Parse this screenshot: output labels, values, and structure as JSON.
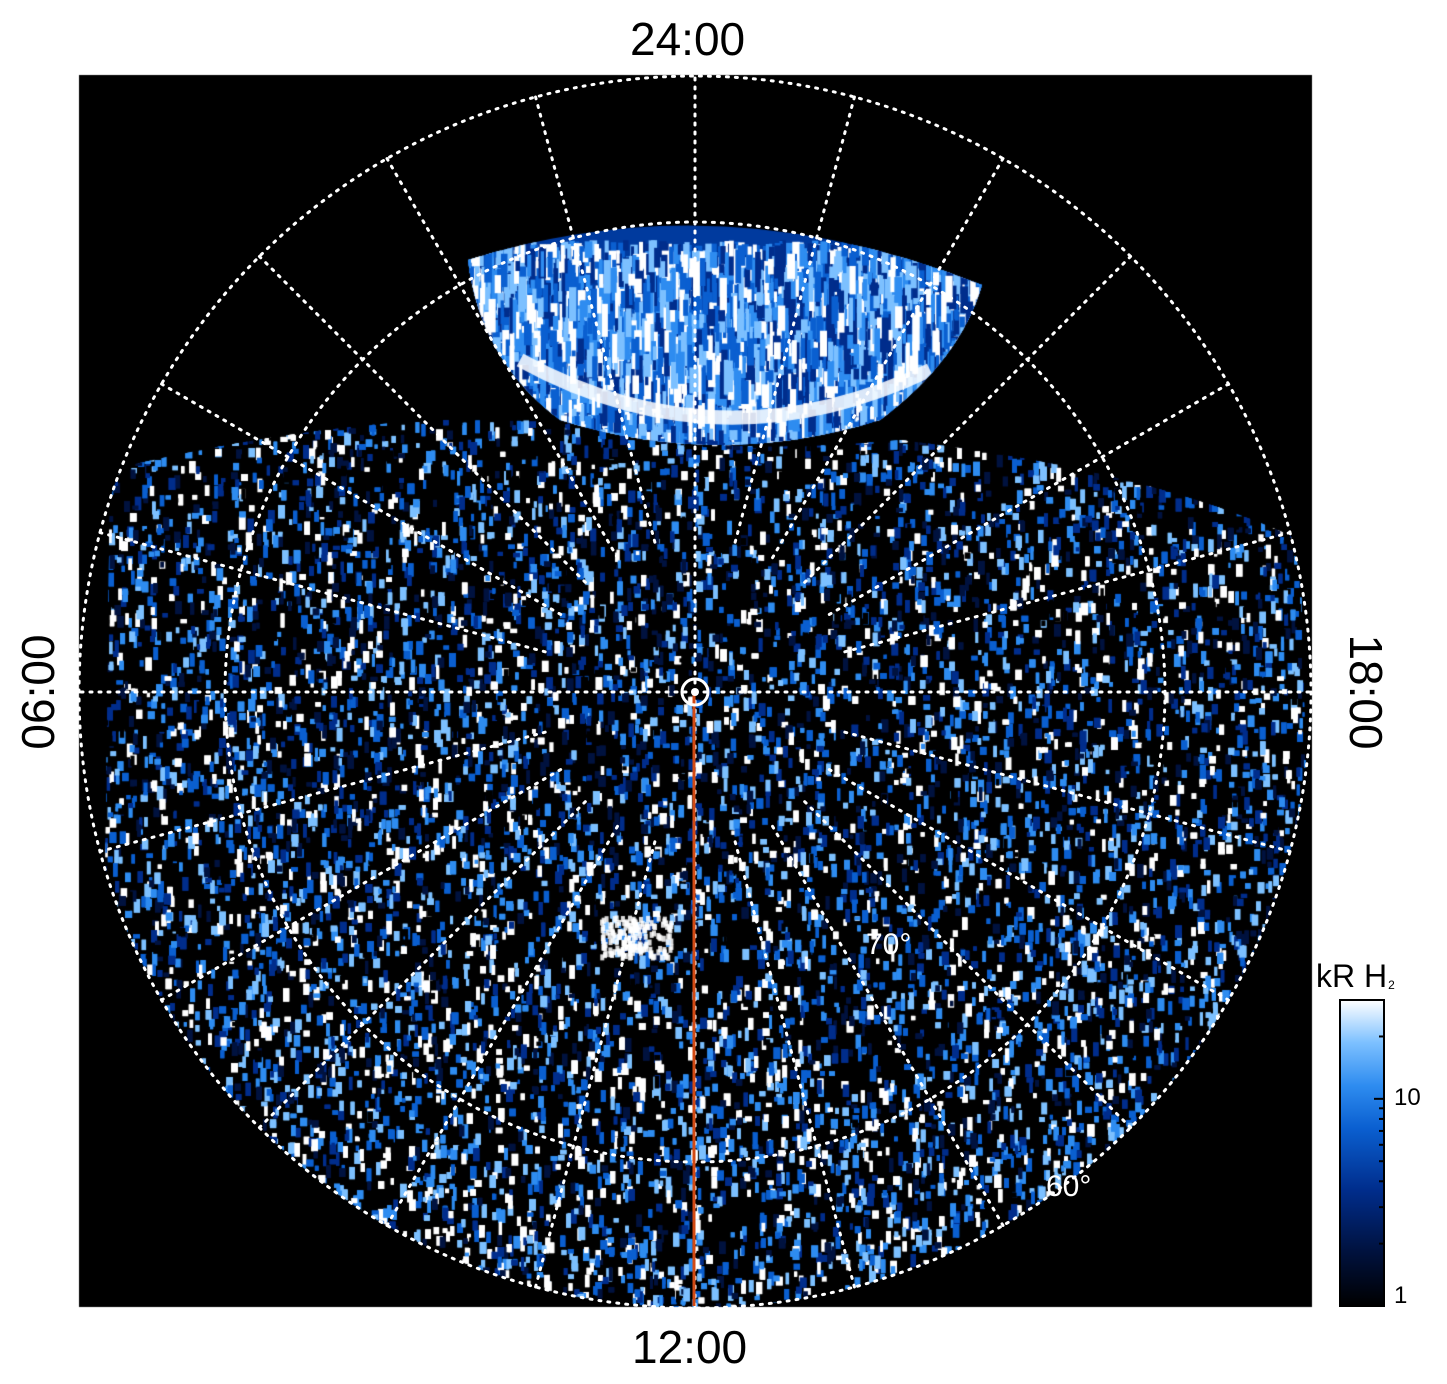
{
  "figure": {
    "local_time_labels": {
      "top": "24:00",
      "bottom": "12:00",
      "left": "06:00",
      "right": "18:00"
    },
    "latitude_labels": {
      "inner": "70°",
      "outer": "60°"
    },
    "colorbar": {
      "title_main": "kR H",
      "title_sub": "2",
      "scale": "log",
      "range": [
        1,
        30
      ],
      "tick_labels": {
        "ten": "10",
        "one": "1"
      }
    },
    "colors": {
      "background": "#000000",
      "grid": "#ffffff",
      "meridian_line": "#d24a14",
      "colormap": [
        "#000000",
        "#00123f",
        "#002d8c",
        "#0a5fd0",
        "#2e8cf0",
        "#7cc0ff",
        "#ffffff"
      ]
    }
  }
}
